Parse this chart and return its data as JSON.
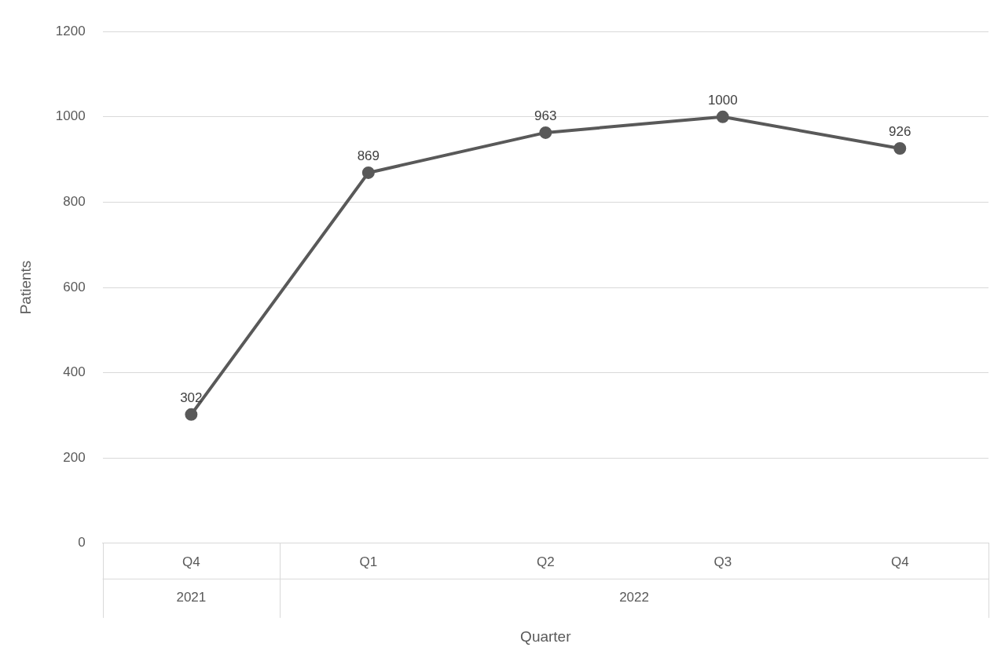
{
  "chart_data": {
    "type": "line",
    "xlabel": "Quarter",
    "ylabel": "Patients",
    "categories": [
      "Q4",
      "Q1",
      "Q2",
      "Q3",
      "Q4"
    ],
    "series": [
      {
        "color": "#595959",
        "values": [
          302,
          869,
          963,
          1000,
          926
        ]
      }
    ],
    "annotations": [
      "2021",
      "2022"
    ],
    "ylim": [
      0,
      1200
    ],
    "yticks": [
      0,
      200,
      400,
      600,
      800,
      1000,
      1200
    ],
    "grid": "y",
    "legend": false,
    "marker": "circle",
    "line_style": "solid",
    "data_labels": true
  }
}
